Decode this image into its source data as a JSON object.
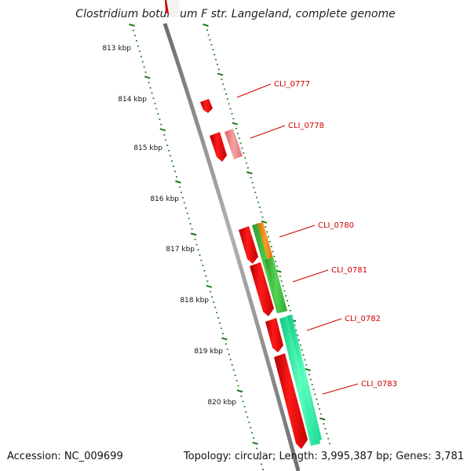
{
  "header": {
    "title": "Clostridium botulinum F str. Langeland, complete genome"
  },
  "footer": {
    "accession": "Accession: NC_009699",
    "summary": "Topology: circular; Length: 3,995,387 bp; Genes: 3,781"
  },
  "colors": {
    "backbone": "#8a8a8a",
    "ticks": "#1a7a1a",
    "gene_red": "#ff0000",
    "gene_pink": "#ef8080",
    "gene_green": "#3ec43e",
    "gene_orange": "#ff8c00",
    "gene_aqua": "#22f0a0",
    "label_red": "#cc0000"
  },
  "scale": {
    "labels": [
      "813 kbp",
      "814 kbp",
      "815 kbp",
      "816 kbp",
      "817 kbp",
      "818 kbp",
      "819 kbp",
      "820 kbp"
    ]
  },
  "genes": {
    "labels": [
      "CLI_0777",
      "CLI_0778",
      "CLI_0780",
      "CLI_0781",
      "CLI_0782",
      "CLI_0783"
    ]
  }
}
